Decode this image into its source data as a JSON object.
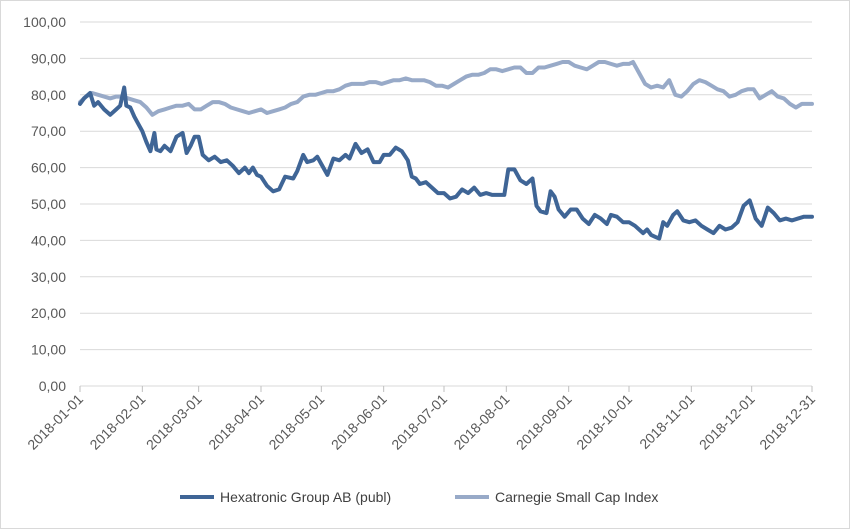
{
  "chart_data": {
    "type": "line",
    "grid": true,
    "legend_position": "bottom",
    "ylim": [
      0,
      100
    ],
    "y_ticks": [
      "0,00",
      "10,00",
      "20,00",
      "30,00",
      "40,00",
      "50,00",
      "60,00",
      "70,00",
      "80,00",
      "90,00",
      "100,00"
    ],
    "x_ticks": [
      "2018-01-01",
      "2018-02-01",
      "2018-03-01",
      "2018-04-01",
      "2018-05-01",
      "2018-06-01",
      "2018-07-01",
      "2018-08-01",
      "2018-09-01",
      "2018-10-01",
      "2018-11-01",
      "2018-12-01",
      "2018-12-31"
    ],
    "xlim": [
      "2018-01-01",
      "2018-12-31"
    ],
    "series": [
      {
        "name": "Hexatronic Group AB (publ)",
        "color": "#3f6596",
        "points": [
          [
            "2018-01-01",
            77.5
          ],
          [
            "2018-01-03",
            79
          ],
          [
            "2018-01-06",
            80.5
          ],
          [
            "2018-01-08",
            77
          ],
          [
            "2018-01-10",
            78
          ],
          [
            "2018-01-13",
            76
          ],
          [
            "2018-01-16",
            74.5
          ],
          [
            "2018-01-19",
            76
          ],
          [
            "2018-01-21",
            77
          ],
          [
            "2018-01-23",
            82
          ],
          [
            "2018-01-24",
            77
          ],
          [
            "2018-01-26",
            76.5
          ],
          [
            "2018-01-28",
            74
          ],
          [
            "2018-01-30",
            72
          ],
          [
            "2018-02-01",
            70
          ],
          [
            "2018-02-03",
            67
          ],
          [
            "2018-02-05",
            64.5
          ],
          [
            "2018-02-07",
            69.5
          ],
          [
            "2018-02-08",
            65
          ],
          [
            "2018-02-10",
            64.5
          ],
          [
            "2018-02-12",
            66
          ],
          [
            "2018-02-15",
            64.5
          ],
          [
            "2018-02-18",
            68.5
          ],
          [
            "2018-02-21",
            69.5
          ],
          [
            "2018-02-23",
            64
          ],
          [
            "2018-02-25",
            66
          ],
          [
            "2018-02-27",
            68.5
          ],
          [
            "2018-03-01",
            68.5
          ],
          [
            "2018-03-03",
            63.5
          ],
          [
            "2018-03-06",
            62
          ],
          [
            "2018-03-09",
            63
          ],
          [
            "2018-03-12",
            61.5
          ],
          [
            "2018-03-15",
            62
          ],
          [
            "2018-03-18",
            60.5
          ],
          [
            "2018-03-21",
            58.5
          ],
          [
            "2018-03-24",
            60
          ],
          [
            "2018-03-26",
            58.5
          ],
          [
            "2018-03-28",
            60
          ],
          [
            "2018-03-30",
            58
          ],
          [
            "2018-04-01",
            57.5
          ],
          [
            "2018-04-04",
            55
          ],
          [
            "2018-04-07",
            53.5
          ],
          [
            "2018-04-10",
            54
          ],
          [
            "2018-04-13",
            57.5
          ],
          [
            "2018-04-17",
            57
          ],
          [
            "2018-04-19",
            59
          ],
          [
            "2018-04-22",
            63.5
          ],
          [
            "2018-04-24",
            61.5
          ],
          [
            "2018-04-27",
            62
          ],
          [
            "2018-04-29",
            63
          ],
          [
            "2018-05-01",
            61
          ],
          [
            "2018-05-04",
            58
          ],
          [
            "2018-05-07",
            62.5
          ],
          [
            "2018-05-10",
            62
          ],
          [
            "2018-05-13",
            63.5
          ],
          [
            "2018-05-15",
            62.5
          ],
          [
            "2018-05-18",
            66.5
          ],
          [
            "2018-05-21",
            64
          ],
          [
            "2018-05-24",
            65
          ],
          [
            "2018-05-27",
            61.5
          ],
          [
            "2018-05-30",
            61.5
          ],
          [
            "2018-06-01",
            63.5
          ],
          [
            "2018-06-04",
            63.5
          ],
          [
            "2018-06-07",
            65.5
          ],
          [
            "2018-06-10",
            64.5
          ],
          [
            "2018-06-13",
            62
          ],
          [
            "2018-06-15",
            57.5
          ],
          [
            "2018-06-17",
            57
          ],
          [
            "2018-06-19",
            55.5
          ],
          [
            "2018-06-22",
            56
          ],
          [
            "2018-06-25",
            54.5
          ],
          [
            "2018-06-28",
            53
          ],
          [
            "2018-07-01",
            53
          ],
          [
            "2018-07-04",
            51.5
          ],
          [
            "2018-07-07",
            52
          ],
          [
            "2018-07-10",
            54
          ],
          [
            "2018-07-13",
            53
          ],
          [
            "2018-07-16",
            54.5
          ],
          [
            "2018-07-19",
            52.5
          ],
          [
            "2018-07-22",
            53
          ],
          [
            "2018-07-25",
            52.5
          ],
          [
            "2018-07-28",
            52.5
          ],
          [
            "2018-07-31",
            52.5
          ],
          [
            "2018-08-02",
            59.5
          ],
          [
            "2018-08-05",
            59.5
          ],
          [
            "2018-08-08",
            56.5
          ],
          [
            "2018-08-11",
            55.5
          ],
          [
            "2018-08-14",
            57
          ],
          [
            "2018-08-16",
            49.5
          ],
          [
            "2018-08-18",
            48
          ],
          [
            "2018-08-21",
            47.5
          ],
          [
            "2018-08-23",
            53.5
          ],
          [
            "2018-08-25",
            52
          ],
          [
            "2018-08-27",
            48.5
          ],
          [
            "2018-08-30",
            46.5
          ],
          [
            "2018-09-02",
            48.5
          ],
          [
            "2018-09-05",
            48.5
          ],
          [
            "2018-09-08",
            46
          ],
          [
            "2018-09-11",
            44.5
          ],
          [
            "2018-09-14",
            47
          ],
          [
            "2018-09-17",
            46
          ],
          [
            "2018-09-20",
            44.5
          ],
          [
            "2018-09-22",
            47
          ],
          [
            "2018-09-25",
            46.5
          ],
          [
            "2018-09-28",
            45
          ],
          [
            "2018-10-01",
            45
          ],
          [
            "2018-10-04",
            44
          ],
          [
            "2018-10-06",
            43
          ],
          [
            "2018-10-08",
            42
          ],
          [
            "2018-10-10",
            43
          ],
          [
            "2018-10-12",
            41.5
          ],
          [
            "2018-10-14",
            41
          ],
          [
            "2018-10-16",
            40.5
          ],
          [
            "2018-10-18",
            45
          ],
          [
            "2018-10-20",
            44
          ],
          [
            "2018-10-23",
            47
          ],
          [
            "2018-10-25",
            48
          ],
          [
            "2018-10-28",
            45.5
          ],
          [
            "2018-10-31",
            45
          ],
          [
            "2018-11-03",
            45.5
          ],
          [
            "2018-11-06",
            44
          ],
          [
            "2018-11-09",
            43
          ],
          [
            "2018-11-12",
            42
          ],
          [
            "2018-11-15",
            44
          ],
          [
            "2018-11-18",
            43
          ],
          [
            "2018-11-21",
            43.5
          ],
          [
            "2018-11-24",
            45
          ],
          [
            "2018-11-27",
            49.5
          ],
          [
            "2018-11-30",
            51
          ],
          [
            "2018-12-03",
            46
          ],
          [
            "2018-12-06",
            44
          ],
          [
            "2018-12-09",
            49
          ],
          [
            "2018-12-12",
            47.5
          ],
          [
            "2018-12-15",
            45.5
          ],
          [
            "2018-12-18",
            46
          ],
          [
            "2018-12-21",
            45.5
          ],
          [
            "2018-12-24",
            46
          ],
          [
            "2018-12-27",
            46.5
          ],
          [
            "2018-12-31",
            46.5
          ]
        ]
      },
      {
        "name": "Carnegie Small Cap Index",
        "color": "#98aac8",
        "points": [
          [
            "2018-01-01",
            78
          ],
          [
            "2018-01-04",
            79.5
          ],
          [
            "2018-01-07",
            80.5
          ],
          [
            "2018-01-10",
            80
          ],
          [
            "2018-01-13",
            79.5
          ],
          [
            "2018-01-16",
            79
          ],
          [
            "2018-01-19",
            79.5
          ],
          [
            "2018-01-22",
            79.5
          ],
          [
            "2018-01-25",
            79
          ],
          [
            "2018-01-28",
            78.5
          ],
          [
            "2018-01-31",
            78
          ],
          [
            "2018-02-03",
            76.5
          ],
          [
            "2018-02-06",
            74.5
          ],
          [
            "2018-02-09",
            75.5
          ],
          [
            "2018-02-12",
            76
          ],
          [
            "2018-02-15",
            76.5
          ],
          [
            "2018-02-18",
            77
          ],
          [
            "2018-02-21",
            77
          ],
          [
            "2018-02-24",
            77.5
          ],
          [
            "2018-02-27",
            76
          ],
          [
            "2018-03-02",
            76
          ],
          [
            "2018-03-05",
            77
          ],
          [
            "2018-03-08",
            78
          ],
          [
            "2018-03-11",
            78
          ],
          [
            "2018-03-14",
            77.5
          ],
          [
            "2018-03-17",
            76.5
          ],
          [
            "2018-03-20",
            76
          ],
          [
            "2018-03-23",
            75.5
          ],
          [
            "2018-03-26",
            75
          ],
          [
            "2018-03-29",
            75.5
          ],
          [
            "2018-04-01",
            76
          ],
          [
            "2018-04-04",
            75
          ],
          [
            "2018-04-07",
            75.5
          ],
          [
            "2018-04-10",
            76
          ],
          [
            "2018-04-13",
            76.5
          ],
          [
            "2018-04-16",
            77.5
          ],
          [
            "2018-04-19",
            78
          ],
          [
            "2018-04-22",
            79.5
          ],
          [
            "2018-04-25",
            80
          ],
          [
            "2018-04-28",
            80
          ],
          [
            "2018-05-01",
            80.5
          ],
          [
            "2018-05-04",
            81
          ],
          [
            "2018-05-07",
            81
          ],
          [
            "2018-05-10",
            81.5
          ],
          [
            "2018-05-13",
            82.5
          ],
          [
            "2018-05-16",
            83
          ],
          [
            "2018-05-19",
            83
          ],
          [
            "2018-05-22",
            83
          ],
          [
            "2018-05-25",
            83.5
          ],
          [
            "2018-05-28",
            83.5
          ],
          [
            "2018-05-31",
            83
          ],
          [
            "2018-06-03",
            83.5
          ],
          [
            "2018-06-06",
            84
          ],
          [
            "2018-06-09",
            84
          ],
          [
            "2018-06-12",
            84.5
          ],
          [
            "2018-06-15",
            84
          ],
          [
            "2018-06-18",
            84
          ],
          [
            "2018-06-21",
            84
          ],
          [
            "2018-06-24",
            83.5
          ],
          [
            "2018-06-27",
            82.5
          ],
          [
            "2018-06-30",
            82.5
          ],
          [
            "2018-07-03",
            82
          ],
          [
            "2018-07-06",
            83
          ],
          [
            "2018-07-09",
            84
          ],
          [
            "2018-07-12",
            85
          ],
          [
            "2018-07-15",
            85.5
          ],
          [
            "2018-07-18",
            85.5
          ],
          [
            "2018-07-21",
            86
          ],
          [
            "2018-07-24",
            87
          ],
          [
            "2018-07-27",
            87
          ],
          [
            "2018-07-30",
            86.5
          ],
          [
            "2018-08-02",
            87
          ],
          [
            "2018-08-05",
            87.5
          ],
          [
            "2018-08-08",
            87.5
          ],
          [
            "2018-08-11",
            86
          ],
          [
            "2018-08-14",
            86
          ],
          [
            "2018-08-17",
            87.5
          ],
          [
            "2018-08-20",
            87.5
          ],
          [
            "2018-08-23",
            88
          ],
          [
            "2018-08-26",
            88.5
          ],
          [
            "2018-08-29",
            89
          ],
          [
            "2018-09-01",
            89
          ],
          [
            "2018-09-04",
            88
          ],
          [
            "2018-09-07",
            87.5
          ],
          [
            "2018-09-10",
            87
          ],
          [
            "2018-09-13",
            88
          ],
          [
            "2018-09-16",
            89
          ],
          [
            "2018-09-19",
            89
          ],
          [
            "2018-09-22",
            88.5
          ],
          [
            "2018-09-25",
            88
          ],
          [
            "2018-09-28",
            88.5
          ],
          [
            "2018-10-01",
            88.5
          ],
          [
            "2018-10-03",
            89
          ],
          [
            "2018-10-06",
            86
          ],
          [
            "2018-10-09",
            83
          ],
          [
            "2018-10-12",
            82
          ],
          [
            "2018-10-15",
            82.5
          ],
          [
            "2018-10-18",
            82
          ],
          [
            "2018-10-21",
            84
          ],
          [
            "2018-10-24",
            80
          ],
          [
            "2018-10-27",
            79.5
          ],
          [
            "2018-10-30",
            81
          ],
          [
            "2018-11-02",
            83
          ],
          [
            "2018-11-05",
            84
          ],
          [
            "2018-11-08",
            83.5
          ],
          [
            "2018-11-11",
            82.5
          ],
          [
            "2018-11-14",
            81.5
          ],
          [
            "2018-11-17",
            81
          ],
          [
            "2018-11-20",
            79.5
          ],
          [
            "2018-11-23",
            80
          ],
          [
            "2018-11-26",
            81
          ],
          [
            "2018-11-29",
            81.5
          ],
          [
            "2018-12-02",
            81.5
          ],
          [
            "2018-12-05",
            79
          ],
          [
            "2018-12-08",
            80
          ],
          [
            "2018-12-11",
            81
          ],
          [
            "2018-12-14",
            79.5
          ],
          [
            "2018-12-17",
            79
          ],
          [
            "2018-12-20",
            77.5
          ],
          [
            "2018-12-23",
            76.5
          ],
          [
            "2018-12-26",
            77.5
          ],
          [
            "2018-12-29",
            77.5
          ],
          [
            "2018-12-31",
            77.5
          ]
        ]
      }
    ]
  }
}
